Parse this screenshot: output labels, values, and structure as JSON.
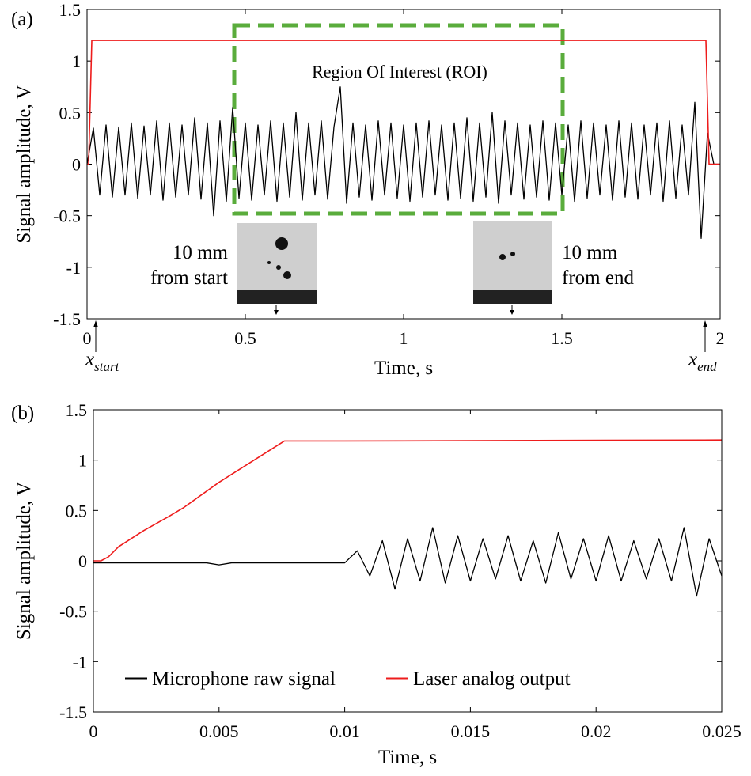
{
  "chart_data": [
    {
      "type": "line",
      "panel": "(a)",
      "xlabel": "Time, s",
      "ylabel": "Signal amplitude, V",
      "xlim": [
        0,
        2
      ],
      "ylim": [
        -1.5,
        1.5
      ],
      "xticks": [
        0,
        0.5,
        1,
        1.5,
        2
      ],
      "yticks": [
        -1.5,
        -1,
        -0.5,
        0,
        0.5,
        1,
        1.5
      ],
      "annotations": {
        "roi": "Region Of Interest (ROI)",
        "start": [
          "10 mm",
          "from start"
        ],
        "end": [
          "10 mm",
          "from end"
        ],
        "x_start": {
          "label": "x",
          "subscript": "start"
        },
        "x_end": {
          "label": "x",
          "subscript": "end"
        }
      },
      "series": [
        {
          "color": "#000000",
          "x": [
            0,
            0.02,
            0.04,
            0.06,
            0.08,
            0.1,
            0.12,
            0.14,
            0.16,
            0.18,
            0.2,
            0.22,
            0.24,
            0.26,
            0.28,
            0.3,
            0.32,
            0.34,
            0.36,
            0.38,
            0.4,
            0.42,
            0.44,
            0.46,
            0.48,
            0.5,
            0.52,
            0.54,
            0.56,
            0.58,
            0.6,
            0.62,
            0.64,
            0.66,
            0.68,
            0.7,
            0.72,
            0.74,
            0.76,
            0.78,
            0.8,
            0.82,
            0.84,
            0.86,
            0.88,
            0.9,
            0.92,
            0.94,
            0.96,
            0.98,
            1,
            1.02,
            1.04,
            1.06,
            1.08,
            1.1,
            1.12,
            1.14,
            1.16,
            1.18,
            1.2,
            1.22,
            1.24,
            1.26,
            1.28,
            1.3,
            1.32,
            1.34,
            1.36,
            1.38,
            1.4,
            1.42,
            1.44,
            1.46,
            1.48,
            1.5,
            1.52,
            1.54,
            1.56,
            1.58,
            1.6,
            1.62,
            1.64,
            1.66,
            1.68,
            1.7,
            1.72,
            1.74,
            1.76,
            1.78,
            1.8,
            1.82,
            1.84,
            1.86,
            1.88,
            1.9,
            1.92,
            1.94,
            1.96,
            1.98,
            2
          ],
          "values": [
            0,
            0.35,
            -0.3,
            0.38,
            -0.32,
            0.36,
            -0.3,
            0.4,
            -0.33,
            0.37,
            -0.3,
            0.42,
            -0.35,
            0.4,
            -0.32,
            0.38,
            -0.3,
            0.45,
            -0.34,
            0.4,
            -0.5,
            0.42,
            -0.36,
            0.55,
            -0.33,
            0.4,
            -0.35,
            0.38,
            -0.3,
            0.42,
            -0.36,
            0.4,
            -0.32,
            0.5,
            -0.35,
            0.4,
            -0.3,
            0.42,
            -0.34,
            0.36,
            0.75,
            -0.38,
            0.4,
            -0.32,
            0.38,
            -0.35,
            0.42,
            -0.3,
            0.4,
            -0.33,
            0.38,
            -0.36,
            0.4,
            -0.32,
            0.42,
            -0.3,
            0.38,
            -0.35,
            0.4,
            -0.33,
            0.45,
            -0.36,
            0.4,
            -0.32,
            0.5,
            -0.38,
            0.42,
            -0.3,
            0.4,
            -0.34,
            0.38,
            -0.32,
            0.42,
            -0.35,
            0.4,
            -0.3,
            0.38,
            -0.36,
            0.42,
            -0.33,
            0.4,
            -0.3,
            0.38,
            -0.35,
            0.42,
            -0.32,
            0.4,
            -0.34,
            0.38,
            -0.3,
            0.4,
            -0.36,
            0.42,
            -0.33,
            0.38,
            -0.3,
            0.6,
            -0.72,
            0.3,
            0,
            0
          ]
        },
        {
          "color": "#ee1c1c",
          "x": [
            0,
            0.005,
            0.015,
            1.955,
            1.965,
            2
          ],
          "values": [
            0,
            0,
            1.2,
            1.2,
            0,
            0
          ]
        }
      ]
    },
    {
      "type": "line",
      "panel": "(b)",
      "xlabel": "Time, s",
      "ylabel": "Signal amplitude, V",
      "xlim": [
        0,
        0.025
      ],
      "ylim": [
        -1.5,
        1.5
      ],
      "xticks": [
        0,
        0.005,
        0.01,
        0.015,
        0.02,
        0.025
      ],
      "yticks": [
        -1.5,
        -1,
        -0.5,
        0,
        0.5,
        1,
        1.5
      ],
      "legend": "lower center",
      "series": [
        {
          "name": "Microphone raw signal",
          "color": "#000000",
          "x": [
            0,
            0.0005,
            0.001,
            0.0015,
            0.002,
            0.0025,
            0.003,
            0.0035,
            0.004,
            0.0045,
            0.005,
            0.0055,
            0.006,
            0.0065,
            0.007,
            0.0075,
            0.008,
            0.0085,
            0.009,
            0.0095,
            0.01,
            0.0105,
            0.011,
            0.0115,
            0.012,
            0.0125,
            0.013,
            0.0135,
            0.014,
            0.0145,
            0.015,
            0.0155,
            0.016,
            0.0165,
            0.017,
            0.0175,
            0.018,
            0.0185,
            0.019,
            0.0195,
            0.02,
            0.0205,
            0.021,
            0.0215,
            0.022,
            0.0225,
            0.023,
            0.0235,
            0.024,
            0.0245,
            0.025
          ],
          "values": [
            -0.02,
            -0.02,
            -0.02,
            -0.02,
            -0.02,
            -0.02,
            -0.02,
            -0.02,
            -0.02,
            -0.02,
            -0.04,
            -0.02,
            -0.02,
            -0.02,
            -0.02,
            -0.02,
            -0.02,
            -0.02,
            -0.02,
            -0.02,
            -0.02,
            0.1,
            -0.15,
            0.2,
            -0.28,
            0.22,
            -0.2,
            0.33,
            -0.22,
            0.25,
            -0.2,
            0.22,
            -0.18,
            0.25,
            -0.2,
            0.2,
            -0.22,
            0.28,
            -0.18,
            0.22,
            -0.2,
            0.25,
            -0.2,
            0.2,
            -0.18,
            0.22,
            -0.2,
            0.33,
            -0.35,
            0.22,
            -0.15
          ]
        },
        {
          "name": "Laser analog output",
          "color": "#ee1c1c",
          "x": [
            0,
            0.0003,
            0.0006,
            0.001,
            0.002,
            0.003,
            0.0036,
            0.005,
            0.0076,
            0.01,
            0.025
          ],
          "values": [
            0,
            0,
            0.04,
            0.14,
            0.3,
            0.44,
            0.53,
            0.78,
            1.19,
            1.19,
            1.2
          ]
        }
      ]
    }
  ]
}
